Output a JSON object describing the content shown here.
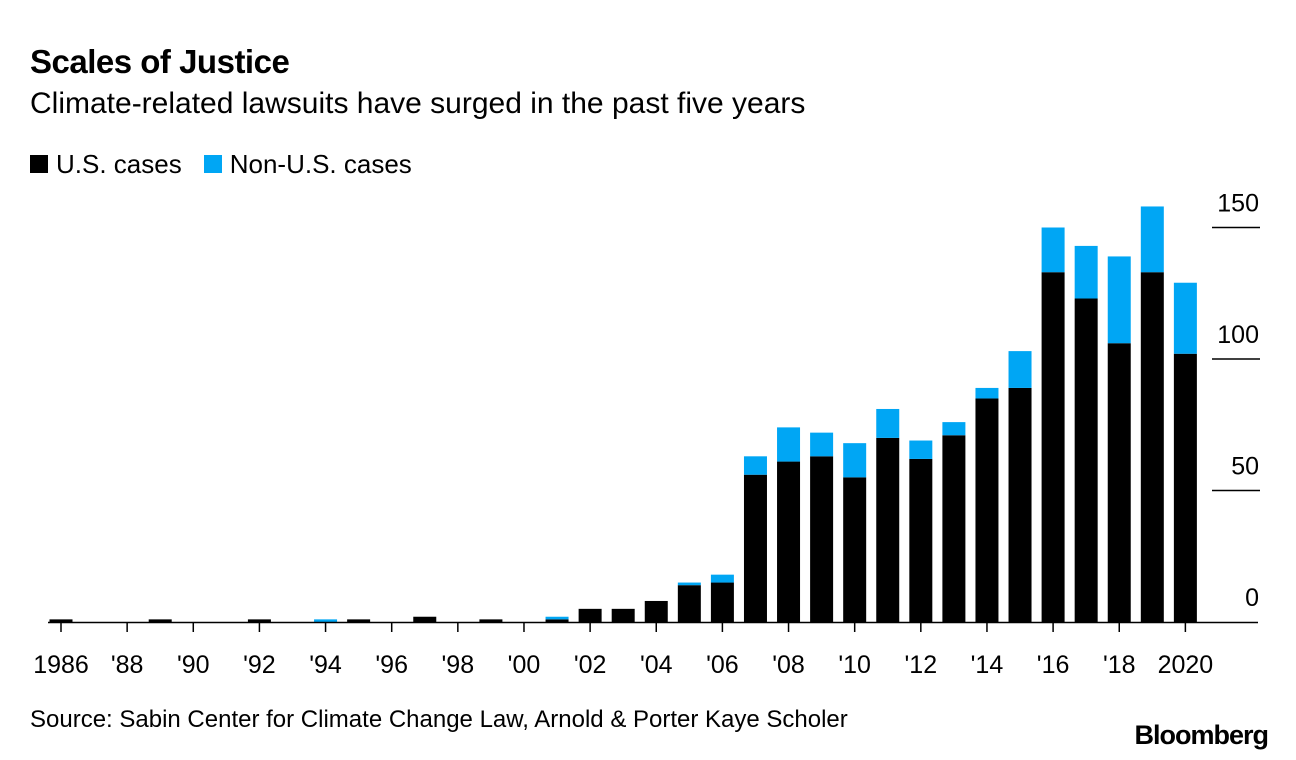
{
  "header": {
    "title": "Scales of Justice",
    "subtitle": "Climate-related lawsuits have surged in the past five years"
  },
  "legend": {
    "items": [
      {
        "label": "U.S. cases",
        "color": "#000000"
      },
      {
        "label": "Non-U.S. cases",
        "color": "#00a6f4"
      }
    ]
  },
  "footer": {
    "source": "Source: Sabin Center for Climate Change Law, Arnold & Porter Kaye Scholer",
    "brand": "Bloomberg"
  },
  "chart_data": {
    "type": "bar",
    "stacked": true,
    "title": "Scales of Justice",
    "subtitle": "Climate-related lawsuits have surged in the past five years",
    "xlabel": "",
    "ylabel": "",
    "ylim": [
      0,
      150
    ],
    "yticks": [
      0,
      50,
      100,
      150
    ],
    "y_axis_position": "right",
    "grid": false,
    "legend_position": "top-left",
    "categories": [
      1986,
      1987,
      1988,
      1989,
      1990,
      1991,
      1992,
      1993,
      1994,
      1995,
      1996,
      1997,
      1998,
      1999,
      2000,
      2001,
      2002,
      2003,
      2004,
      2005,
      2006,
      2007,
      2008,
      2009,
      2010,
      2011,
      2012,
      2013,
      2014,
      2015,
      2016,
      2017,
      2018,
      2019,
      2020
    ],
    "xtick_labels": [
      {
        "year": 1986,
        "label": "1986"
      },
      {
        "year": 1988,
        "label": "'88"
      },
      {
        "year": 1990,
        "label": "'90"
      },
      {
        "year": 1992,
        "label": "'92"
      },
      {
        "year": 1994,
        "label": "'94"
      },
      {
        "year": 1996,
        "label": "'96"
      },
      {
        "year": 1998,
        "label": "'98"
      },
      {
        "year": 2000,
        "label": "'00"
      },
      {
        "year": 2002,
        "label": "'02"
      },
      {
        "year": 2004,
        "label": "'04"
      },
      {
        "year": 2006,
        "label": "'06"
      },
      {
        "year": 2008,
        "label": "'08"
      },
      {
        "year": 2010,
        "label": "'10"
      },
      {
        "year": 2012,
        "label": "'12"
      },
      {
        "year": 2014,
        "label": "'14"
      },
      {
        "year": 2016,
        "label": "'16"
      },
      {
        "year": 2018,
        "label": "'18"
      },
      {
        "year": 2020,
        "label": "2020"
      }
    ],
    "series": [
      {
        "name": "U.S. cases",
        "color": "#000000",
        "values": [
          1,
          0,
          0,
          1,
          0,
          0,
          1,
          0,
          0,
          1,
          0,
          2,
          0,
          1,
          0,
          1,
          5,
          5,
          8,
          14,
          15,
          56,
          61,
          63,
          55,
          70,
          62,
          71,
          85,
          89,
          133,
          123,
          106,
          133,
          102
        ]
      },
      {
        "name": "Non-U.S. cases",
        "color": "#00a6f4",
        "values": [
          0,
          0,
          0,
          0,
          0,
          0,
          0,
          0,
          1,
          0,
          0,
          0,
          0,
          0,
          0,
          1,
          0,
          0,
          0,
          1,
          3,
          7,
          13,
          9,
          13,
          11,
          7,
          5,
          4,
          14,
          17,
          20,
          33,
          25,
          27
        ]
      }
    ]
  }
}
